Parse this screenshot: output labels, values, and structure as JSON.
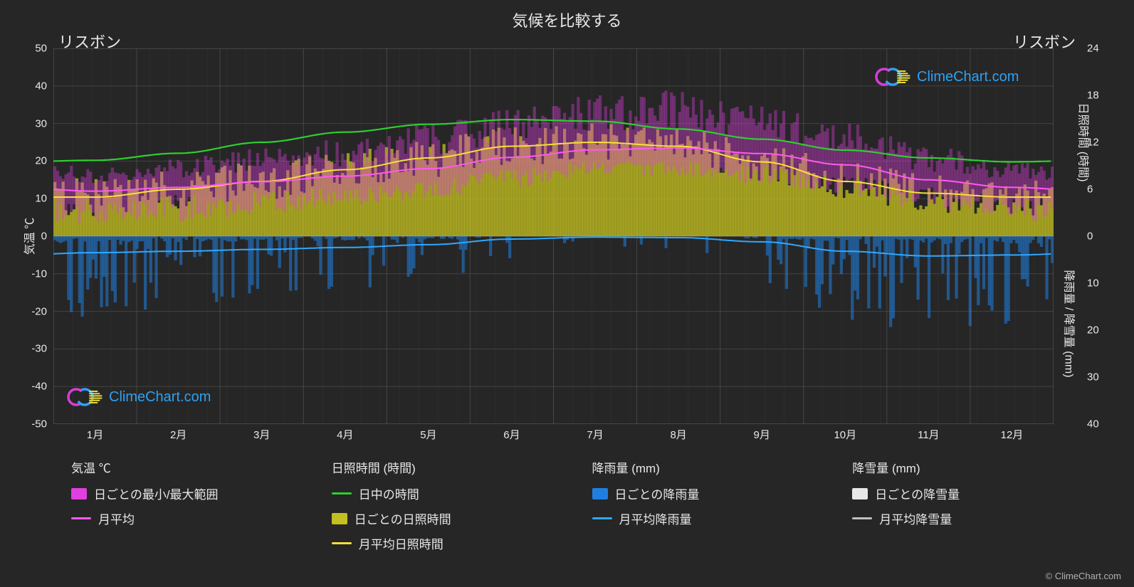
{
  "title": "気候を比較する",
  "city_left": "リスボン",
  "city_right": "リスボン",
  "brand": "ClimeChart.com",
  "credit": "© ClimeChart.com",
  "axis_left": {
    "label": "気温 ℃",
    "min": -50,
    "max": 50,
    "ticks": [
      50,
      40,
      30,
      20,
      10,
      0,
      -10,
      -20,
      -30,
      -40,
      -50
    ]
  },
  "axis_right_top": {
    "label": "日照時間 (時間)",
    "min": 0,
    "max": 24,
    "ticks": [
      24,
      18,
      12,
      6,
      0
    ]
  },
  "axis_right_bot": {
    "label": "降雨量 / 降雪量 (mm)",
    "min": 0,
    "max": 40,
    "ticks": [
      10,
      20,
      30,
      40
    ]
  },
  "months": [
    "1月",
    "2月",
    "3月",
    "4月",
    "5月",
    "6月",
    "7月",
    "8月",
    "9月",
    "10月",
    "11月",
    "12月"
  ],
  "colors": {
    "bg": "#262626",
    "grid": "#5a5a5a",
    "grid_minor": "#3e3e3e",
    "zero": "#7a7a7a",
    "temp_range": "#e040e0",
    "temp_avg": "#ff5af0",
    "daylight": "#2fce2f",
    "sun_bars": "#c4c020",
    "sun_avg": "#f5e03a",
    "rain_bars": "#1f7fe0",
    "rain_avg": "#2fa8ff",
    "snow_bars": "#e8e8e8",
    "snow_avg": "#c0c0c0"
  },
  "legend": {
    "temp": {
      "head": "気温 ℃",
      "items": [
        {
          "sw": "#e040e0",
          "type": "box",
          "label": "日ごとの最小/最大範囲"
        },
        {
          "sw": "#ff5af0",
          "type": "line",
          "label": "月平均"
        }
      ]
    },
    "sun": {
      "head": "日照時間 (時間)",
      "items": [
        {
          "sw": "#2fce2f",
          "type": "line",
          "label": "日中の時間"
        },
        {
          "sw": "#c4c020",
          "type": "box",
          "label": "日ごとの日照時間"
        },
        {
          "sw": "#f5e03a",
          "type": "line",
          "label": "月平均日照時間"
        }
      ]
    },
    "rain": {
      "head": "降雨量 (mm)",
      "items": [
        {
          "sw": "#1f7fe0",
          "type": "box",
          "label": "日ごとの降雨量"
        },
        {
          "sw": "#2fa8ff",
          "type": "line",
          "label": "月平均降雨量"
        }
      ]
    },
    "snow": {
      "head": "降雪量 (mm)",
      "items": [
        {
          "sw": "#e8e8e8",
          "type": "box",
          "label": "日ごとの降雪量"
        },
        {
          "sw": "#c0c0c0",
          "type": "line",
          "label": "月平均降雪量"
        }
      ]
    }
  },
  "series": {
    "daylight_h": [
      9.7,
      10.6,
      12.0,
      13.3,
      14.3,
      14.9,
      14.7,
      13.7,
      12.4,
      11.0,
      10.0,
      9.5
    ],
    "sun_h": [
      5.0,
      6.0,
      7.0,
      8.5,
      10.0,
      11.5,
      12.0,
      11.5,
      9.5,
      7.0,
      5.5,
      5.0
    ],
    "temp_avg": [
      12,
      13,
      14.5,
      16,
      18,
      21,
      23,
      23.5,
      22,
      19,
      15,
      13
    ],
    "temp_high_max": [
      19,
      21,
      24,
      26,
      30,
      34,
      38,
      39,
      35,
      30,
      24,
      20
    ],
    "temp_high_min": [
      14,
      15,
      17,
      18,
      21,
      25,
      28,
      28,
      26,
      22,
      17,
      15
    ],
    "temp_low_max": [
      10,
      11,
      12,
      13,
      15,
      18,
      20,
      20,
      19,
      16,
      13,
      11
    ],
    "temp_low_min": [
      3,
      4,
      6,
      8,
      10,
      13,
      16,
      16,
      14,
      11,
      7,
      4
    ],
    "rain_avg_mm": [
      3.5,
      3.2,
      2.8,
      2.4,
      1.8,
      0.6,
      0.2,
      0.3,
      1.2,
      3.2,
      4.2,
      4.0
    ],
    "rain_max_mm": [
      18,
      16,
      14,
      12,
      10,
      6,
      3,
      3,
      10,
      18,
      22,
      20
    ]
  }
}
